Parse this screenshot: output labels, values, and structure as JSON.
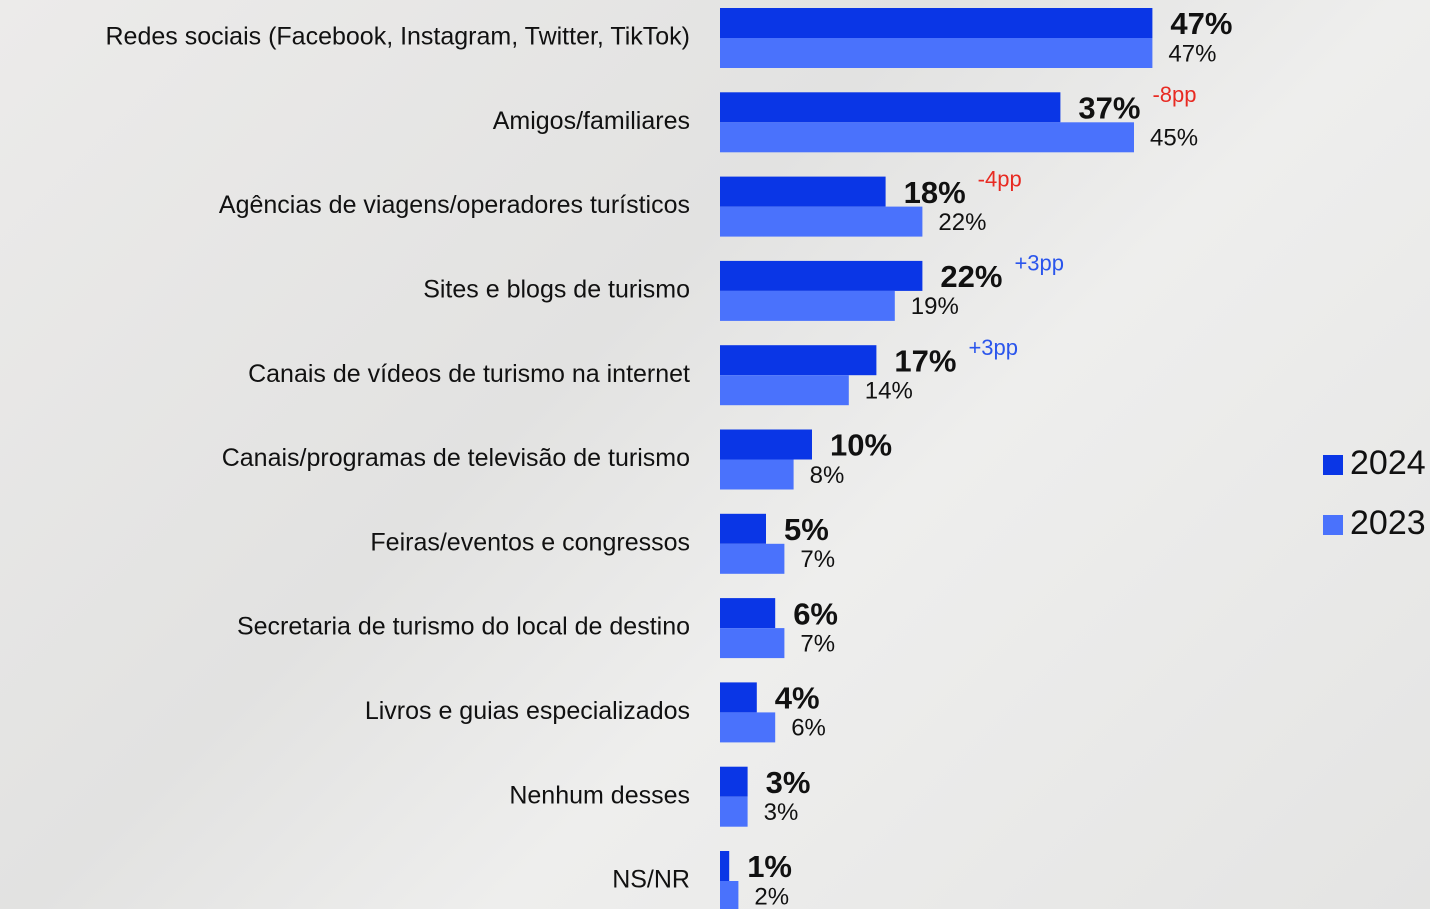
{
  "chart_data": {
    "type": "bar",
    "orientation": "horizontal",
    "categories": [
      "Redes sociais (Facebook, Instagram, Twitter, TikTok)",
      "Amigos/familiares",
      "Agências de viagens/operadores turísticos",
      "Sites e blogs de turismo",
      "Canais de vídeos de turismo na internet",
      "Canais/programas de televisão de turismo",
      "Feiras/eventos e congressos",
      "Secretaria de turismo do local de destino",
      "Livros e guias especializados",
      "Nenhum desses",
      "NS/NR"
    ],
    "series": [
      {
        "name": "2024",
        "color": "#0a36e6",
        "values": [
          47,
          37,
          18,
          22,
          17,
          10,
          5,
          6,
          4,
          3,
          1
        ],
        "value_labels": [
          "47%",
          "37%",
          "18%",
          "22%",
          "17%",
          "10%",
          "5%",
          "6%",
          "4%",
          "3%",
          "1%"
        ]
      },
      {
        "name": "2023",
        "color": "#4a72fc",
        "values": [
          47,
          45,
          22,
          19,
          14,
          8,
          7,
          7,
          6,
          3,
          2
        ],
        "value_labels": [
          "47%",
          "45%",
          "22%",
          "19%",
          "14%",
          "8%",
          "7%",
          "7%",
          "6%",
          "3%",
          "2%"
        ]
      }
    ],
    "annotations": [
      null,
      {
        "text": "-8pp",
        "color": "#e82a22"
      },
      {
        "text": "-4pp",
        "color": "#e82a22"
      },
      {
        "text": "+3pp",
        "color": "#2a55ec"
      },
      {
        "text": "+3pp",
        "color": "#2a55ec"
      },
      null,
      null,
      null,
      null,
      null,
      null
    ],
    "xlim": [
      0,
      50
    ],
    "legend": "right"
  }
}
